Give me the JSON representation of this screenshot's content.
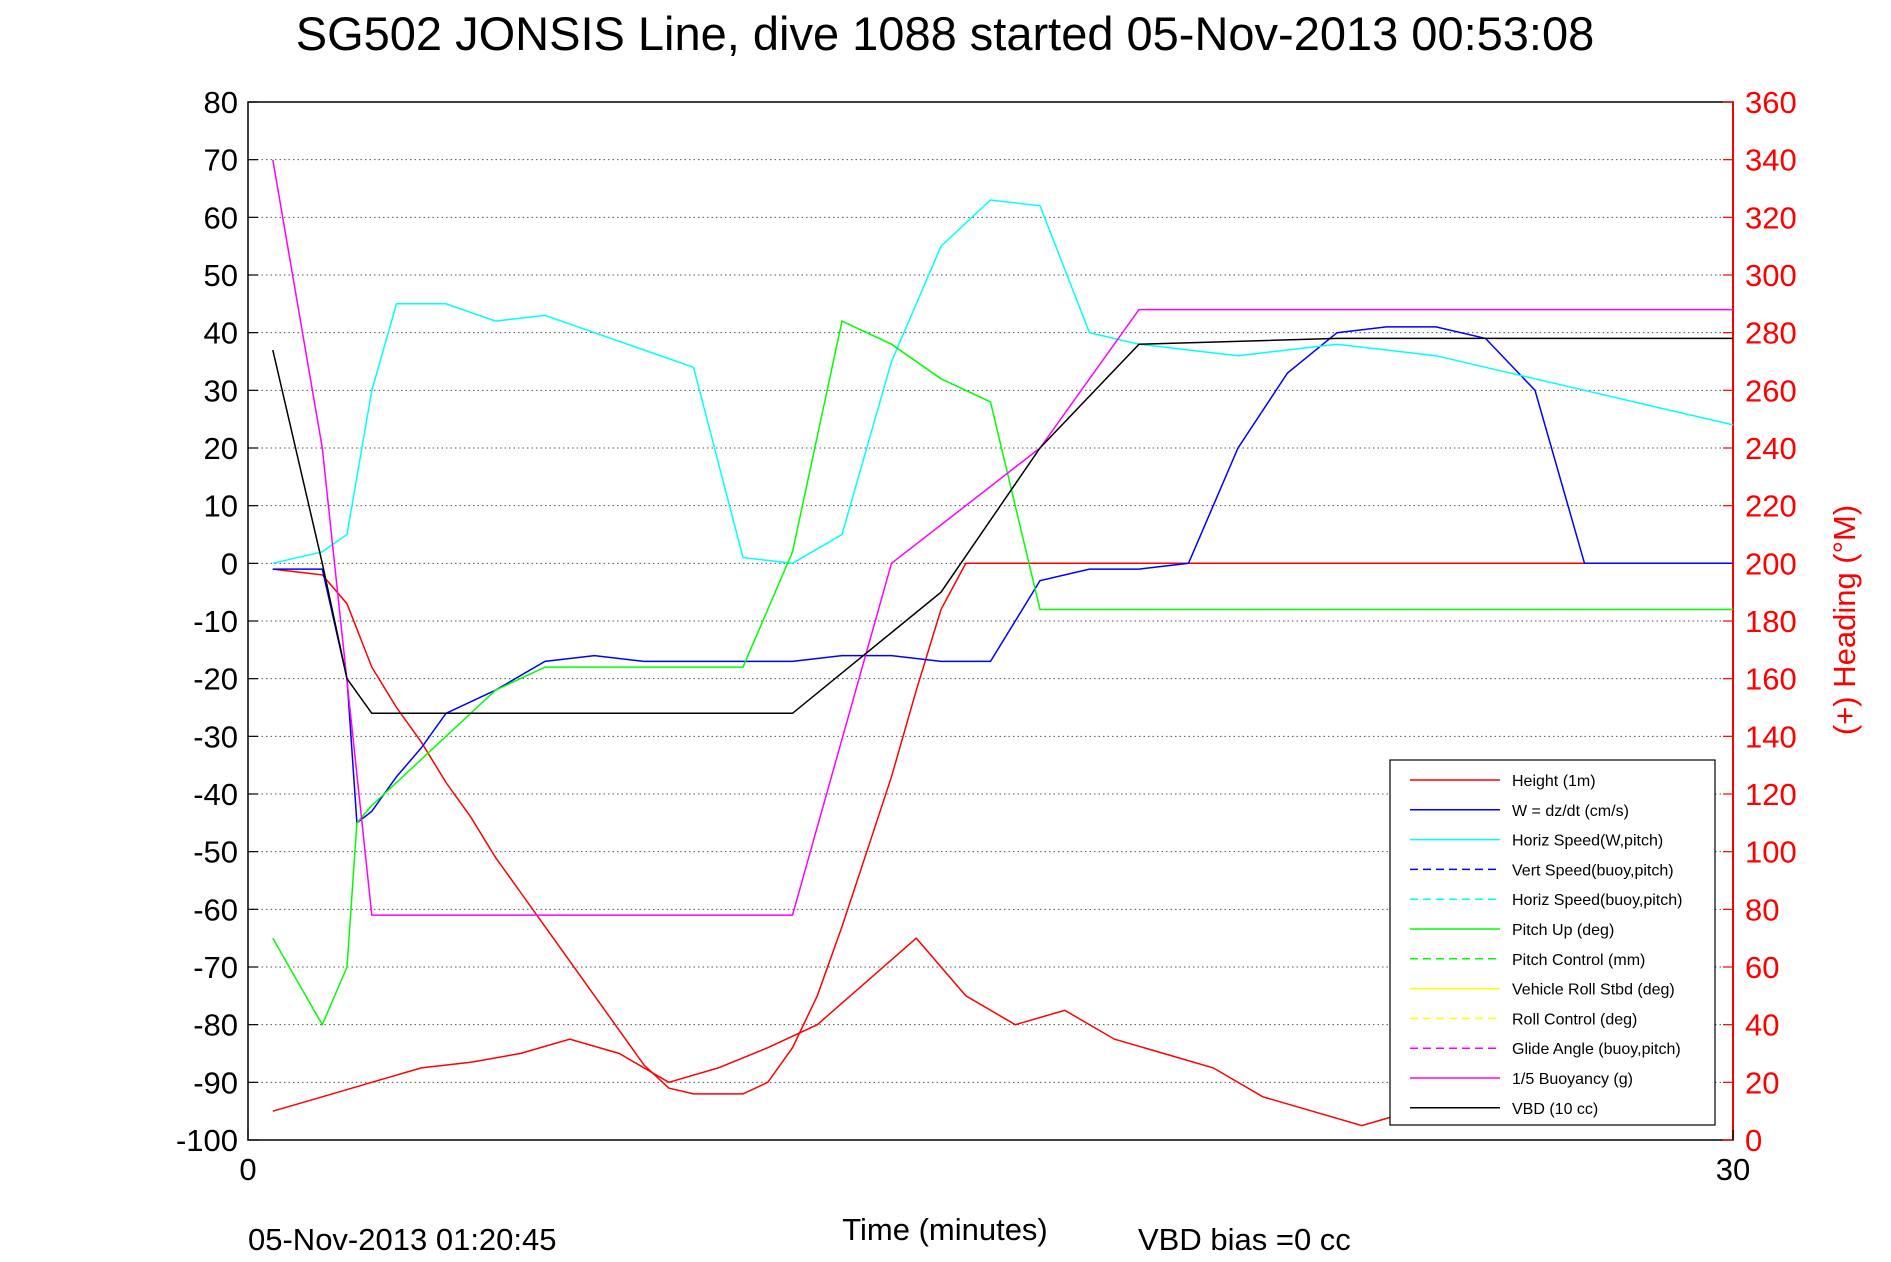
{
  "chart_data": {
    "type": "line",
    "title": "SG502 JONSIS Line, dive 1088 started 05-Nov-2013 00:53:08",
    "xlabel": "Time (minutes)",
    "ylabel_right": "(+) Heading (°M)",
    "footer_left": "05-Nov-2013 01:20:45",
    "footer_right": "VBD bias =0 cc",
    "xlim": [
      0,
      30
    ],
    "ylim": [
      -100,
      80
    ],
    "ylim_right": [
      0,
      360
    ],
    "x_ticks": [
      "0",
      "30"
    ],
    "y_ticks": [
      "80",
      "70",
      "60",
      "50",
      "40",
      "30",
      "20",
      "10",
      "0",
      "-10",
      "-20",
      "-30",
      "-40",
      "-50",
      "-60",
      "-70",
      "-80",
      "-90",
      "-100"
    ],
    "y_ticks_right": [
      "360",
      "340",
      "320",
      "300",
      "280",
      "260",
      "240",
      "220",
      "200",
      "180",
      "160",
      "140",
      "120",
      "100",
      "80",
      "60",
      "40",
      "20",
      "0"
    ],
    "grid": "horizontal dotted",
    "legend_position": "bottom-right",
    "colors": {
      "height": "#ff0000",
      "w": "#0000ff",
      "horiz_speed_w": "#00ffff",
      "pitch": "#00ff00",
      "roll": "#ffff00",
      "glide_angle": "#ff00ff",
      "buoyancy": "#ff00ff",
      "vbd": "#000000",
      "heading": "#ff0000"
    },
    "legend": [
      {
        "label": "Height (1m)",
        "color": "#ff0000",
        "dash": false
      },
      {
        "label": "W = dz/dt (cm/s)",
        "color": "#0000ff",
        "dash": false
      },
      {
        "label": "Horiz Speed(W,pitch)",
        "color": "#00ffff",
        "dash": false
      },
      {
        "label": "Vert Speed(buoy,pitch)",
        "color": "#0000ff",
        "dash": true
      },
      {
        "label": "Horiz Speed(buoy,pitch)",
        "color": "#00ffff",
        "dash": true
      },
      {
        "label": "Pitch Up (deg)",
        "color": "#00ff00",
        "dash": false
      },
      {
        "label": "Pitch Control (mm)",
        "color": "#00ff00",
        "dash": true
      },
      {
        "label": "Vehicle Roll Stbd (deg)",
        "color": "#ffff00",
        "dash": false
      },
      {
        "label": "Roll Control (deg)",
        "color": "#ffff00",
        "dash": true
      },
      {
        "label": "Glide Angle (buoy,pitch)",
        "color": "#ff00ff",
        "dash": true
      },
      {
        "label": "1/5 Buoyancy (g)",
        "color": "#ff00ff",
        "dash": false
      },
      {
        "label": "VBD (10 cc)",
        "color": "#000000",
        "dash": false
      }
    ],
    "series": [
      {
        "name": "Height (1m)",
        "axis": "left",
        "color": "#ff0000",
        "dash": false,
        "x": [
          0.5,
          1.0,
          1.5,
          2.0,
          2.5,
          3.0,
          3.5,
          4.0,
          4.5,
          5.0,
          5.5,
          6.0,
          6.5,
          7.0,
          7.5,
          8.0,
          8.5,
          9.0,
          9.5,
          10.0,
          10.5,
          11.0,
          11.5,
          12.0,
          12.5,
          13.0,
          13.5,
          14.0,
          14.5,
          15.0,
          15.5,
          16.0,
          16.5,
          17.0,
          17.5,
          18.0,
          18.5,
          19.0,
          19.5,
          20.0,
          20.5,
          21.0,
          21.5,
          22.0,
          22.5,
          23.0,
          23.5,
          24.0,
          24.5,
          25.0,
          25.5,
          26.0,
          26.5,
          27.0,
          27.5,
          28.0,
          28.5,
          29.0,
          29.5,
          30.0
        ],
        "y": [
          -1,
          -1.5,
          -2,
          -7,
          -18,
          -25,
          -31,
          -38,
          -44,
          -51,
          -57,
          -63,
          -69,
          -75,
          -81,
          -87,
          -91,
          -92,
          -92,
          -92,
          -90,
          -84,
          -75,
          -63,
          -50,
          -37,
          -22,
          -8,
          0,
          0,
          0,
          0,
          0,
          0,
          0,
          0,
          0,
          0,
          0,
          0,
          0,
          0,
          0,
          0,
          0,
          0,
          0,
          0,
          0,
          0,
          0,
          0,
          0,
          0,
          0,
          0,
          0,
          0,
          0,
          0
        ]
      },
      {
        "name": "W = dz/dt (cm/s)",
        "axis": "left",
        "color": "#0000ff",
        "dash": false,
        "x": [
          0.5,
          1.5,
          2.0,
          2.2,
          2.5,
          3.0,
          3.5,
          4.0,
          5.0,
          6.0,
          7.0,
          8.0,
          9.0,
          10.0,
          11.0,
          12.0,
          13.0,
          14.0,
          15.0,
          16.0,
          17.0,
          18.0,
          19.0,
          20.0,
          21.0,
          22.0,
          23.0,
          24.0,
          25.0,
          26.0,
          27.0,
          28.0,
          29.0,
          30.0
        ],
        "y": [
          -1,
          -1,
          -20,
          -45,
          -43,
          -37,
          -32,
          -26,
          -22,
          -17,
          -16,
          -17,
          -17,
          -17,
          -17,
          -16,
          -16,
          -17,
          -17,
          -3,
          -1,
          -1,
          0,
          20,
          33,
          40,
          41,
          41,
          39,
          30,
          0,
          0,
          0,
          0
        ]
      },
      {
        "name": "Horiz Speed(W,pitch)",
        "axis": "left",
        "color": "#00ffff",
        "dash": false,
        "x": [
          0.5,
          1.5,
          2.0,
          2.5,
          3.0,
          4.0,
          5.0,
          6.0,
          7.0,
          8.0,
          9.0,
          10.0,
          11.0,
          12.0,
          13.0,
          14.0,
          15.0,
          16.0,
          17.0,
          18.0,
          19.0,
          20.0,
          21.0,
          22.0,
          23.0,
          24.0,
          25.0,
          26.0,
          27.0,
          28.0,
          29.0,
          30.0
        ],
        "y": [
          0,
          2,
          5,
          30,
          45,
          45,
          42,
          43,
          40,
          37,
          34,
          1,
          0,
          5,
          35,
          55,
          63,
          62,
          40,
          38,
          37,
          36,
          37,
          38,
          37,
          36,
          34,
          32,
          30,
          28,
          26,
          24
        ]
      },
      {
        "name": "Pitch Up (deg)",
        "axis": "left",
        "color": "#00ff00",
        "dash": false,
        "x": [
          0.5,
          1.5,
          2.0,
          2.2,
          2.5,
          3.0,
          4.0,
          5.0,
          6.0,
          7.0,
          8.0,
          9.0,
          10.0,
          11.0,
          12.0,
          13.0,
          14.0,
          15.0,
          16.0,
          17.0,
          18.0,
          19.0,
          20.0,
          21.0,
          22.0,
          23.0,
          24.0,
          25.0,
          26.0,
          27.0,
          28.0,
          29.0,
          30.0
        ],
        "y": [
          -65,
          -80,
          -70,
          -45,
          -42,
          -38,
          -30,
          -22,
          -18,
          -18,
          -18,
          -18,
          -18,
          2,
          42,
          38,
          32,
          28,
          -8,
          -8,
          -8,
          -8,
          -8,
          -8,
          -8,
          -8,
          -8,
          -8,
          -8,
          -8,
          -8,
          -8,
          -8
        ]
      },
      {
        "name": "1/5 Buoyancy (g)",
        "axis": "left",
        "color": "#ff00ff",
        "dash": false,
        "x": [
          0.5,
          1.5,
          2.5,
          5.0,
          8.0,
          11.0,
          13.0,
          16.0,
          18.0,
          22.0,
          26.0,
          30.0
        ],
        "y": [
          70,
          20,
          -61,
          -61,
          -61,
          -61,
          0,
          20,
          44,
          44,
          44,
          44
        ]
      },
      {
        "name": "VBD (10 cc)",
        "axis": "left",
        "color": "#000000",
        "dash": false,
        "x": [
          0.5,
          1.5,
          2.0,
          2.5,
          5.0,
          8.0,
          11.0,
          14.0,
          16.0,
          18.0,
          22.0,
          26.0,
          30.0
        ],
        "y": [
          37,
          0,
          -20,
          -26,
          -26,
          -26,
          -26,
          -5,
          20,
          38,
          39,
          39,
          39
        ]
      },
      {
        "name": "(+) Heading (°M)",
        "axis": "right",
        "color": "#ff0000",
        "dash": false,
        "x": [
          0.5,
          1.5,
          2.5,
          3.5,
          4.5,
          5.5,
          6.5,
          7.5,
          8.5,
          9.5,
          10.5,
          11.5,
          12.5,
          13.5,
          14.5,
          15.5,
          16.5,
          17.5,
          18.5,
          19.5,
          20.5,
          21.5,
          22.5,
          23.5,
          24.5,
          25.5,
          26.5,
          27.5,
          28.5,
          29.5
        ],
        "y": [
          10,
          15,
          20,
          25,
          27,
          30,
          35,
          30,
          20,
          25,
          32,
          40,
          55,
          70,
          50,
          40,
          45,
          35,
          30,
          25,
          15,
          10,
          5,
          10,
          12,
          10,
          8,
          10,
          8,
          10
        ]
      }
    ]
  }
}
